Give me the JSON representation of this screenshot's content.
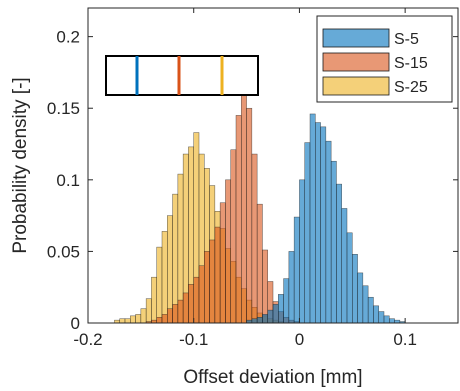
{
  "chart_data": {
    "type": "histogram",
    "xlabel": "Offset deviation [mm]",
    "ylabel": "Probability density [-]",
    "xlim": [
      -0.2,
      0.15
    ],
    "ylim": [
      0,
      0.22
    ],
    "xticks": [
      -0.2,
      -0.1,
      0,
      0.1
    ],
    "xtick_labels": [
      "-0.2",
      "-0.1",
      "0",
      "0.1"
    ],
    "yticks": [
      0,
      0.05,
      0.1,
      0.15,
      0.2
    ],
    "ytick_labels": [
      "0",
      "0.05",
      "0.1",
      "0.15",
      "0.2"
    ],
    "grid": false,
    "legend_position": "top-right",
    "bin_width": 0.005,
    "series": [
      {
        "name": "S-25",
        "color": "#EDB120",
        "bin_start": -0.175,
        "values": [
          0.002,
          0.003,
          0.003,
          0.005,
          0.006,
          0.01,
          0.017,
          0.032,
          0.053,
          0.064,
          0.075,
          0.09,
          0.104,
          0.118,
          0.123,
          0.133,
          0.118,
          0.108,
          0.096,
          0.078,
          0.066,
          0.052,
          0.043,
          0.032,
          0.024,
          0.016,
          0.011,
          0.007,
          0.005,
          0.003,
          0.002,
          0.001
        ]
      },
      {
        "name": "S-15",
        "color": "#D95319",
        "bin_start": -0.145,
        "values": [
          0.001,
          0.002,
          0.004,
          0.006,
          0.01,
          0.013,
          0.016,
          0.021,
          0.027,
          0.032,
          0.04,
          0.05,
          0.058,
          0.067,
          0.084,
          0.1,
          0.121,
          0.145,
          0.17,
          0.15,
          0.118,
          0.083,
          0.051,
          0.029,
          0.015,
          0.008,
          0.004,
          0.002,
          0.001
        ]
      },
      {
        "name": "S-5",
        "color": "#0072BD",
        "bin_start": -0.05,
        "values": [
          0.002,
          0.003,
          0.004,
          0.006,
          0.009,
          0.013,
          0.02,
          0.031,
          0.05,
          0.074,
          0.1,
          0.126,
          0.146,
          0.14,
          0.137,
          0.127,
          0.113,
          0.097,
          0.08,
          0.063,
          0.048,
          0.035,
          0.026,
          0.018,
          0.012,
          0.008,
          0.005,
          0.003,
          0.002,
          0.001
        ]
      }
    ],
    "inset": {
      "marker_colors": [
        "#0072BD",
        "#D95319",
        "#EDB120"
      ]
    }
  }
}
